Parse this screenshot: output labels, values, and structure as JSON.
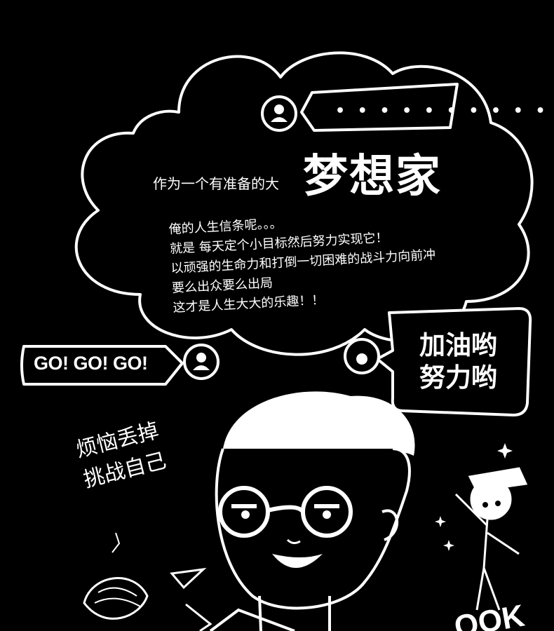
{
  "poster": {
    "dots": "• • • • • • • • • • •",
    "lead": "作为一个有准备的大",
    "title": "梦想家",
    "body_lines": [
      "俺的人生信条呢。。。",
      "就是 每天定个小目标然后努力实现它！",
      "以顽强的生命力和打倒一切困难的战斗力向前冲",
      "要么出众要么出局",
      " 这才是人生大大的乐趣！！"
    ],
    "go_badge": "GO! GO! GO!",
    "cheer_lines": [
      "加油哟",
      "努力哟"
    ],
    "handwritten_lines": [
      "烦恼丢掉",
      "挑战自己"
    ]
  },
  "colors": {
    "background": "#000000",
    "ink": "#ffffff"
  },
  "icons": [
    "user-avatar-icon",
    "sparkle-icon"
  ]
}
